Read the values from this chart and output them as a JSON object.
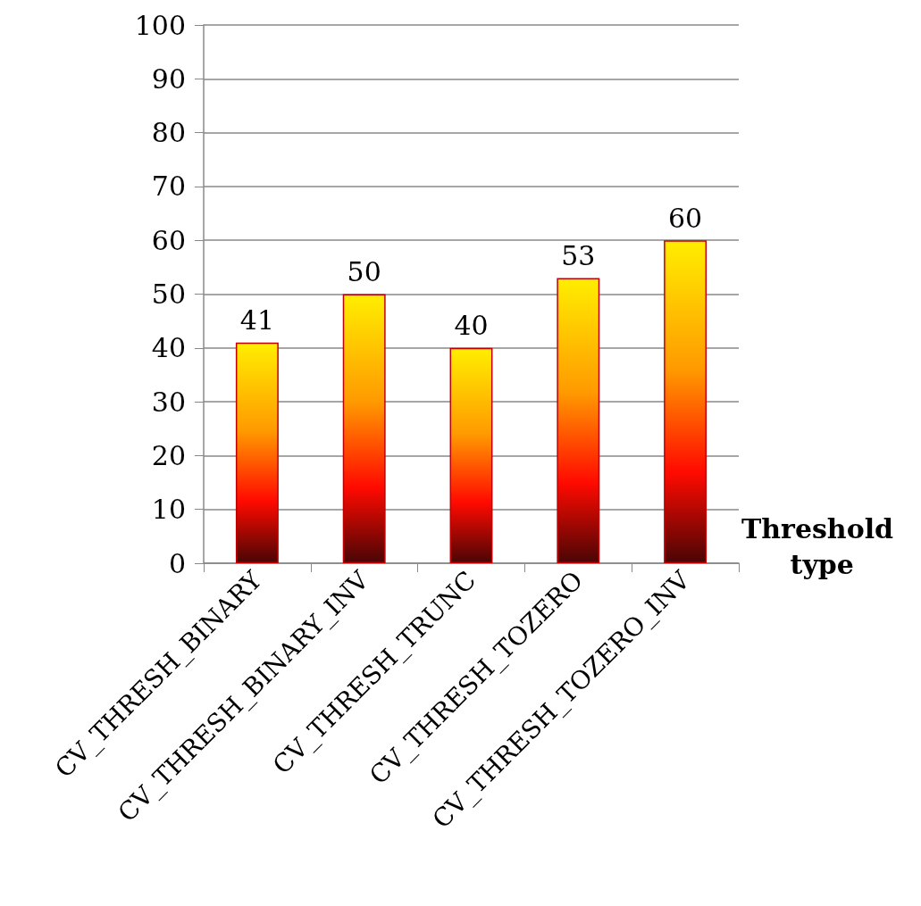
{
  "chart_data": {
    "type": "bar",
    "xlabel": "Threshold type",
    "categories": [
      "CV_THRESH_BINARY",
      "CV_THRESH_BINARY_INV",
      "CV_THRESH_TRUNC",
      "CV_THRESH_TOZERO",
      "CV_THRESH_TOZERO_INV"
    ],
    "values": [
      41,
      50,
      40,
      53,
      60
    ],
    "color": "#c00000",
    "ylim": [
      0,
      100
    ],
    "yticks": [
      0,
      10,
      20,
      30,
      40,
      50,
      60,
      70,
      80,
      90,
      100
    ],
    "grid": "y",
    "data_labels": true
  }
}
